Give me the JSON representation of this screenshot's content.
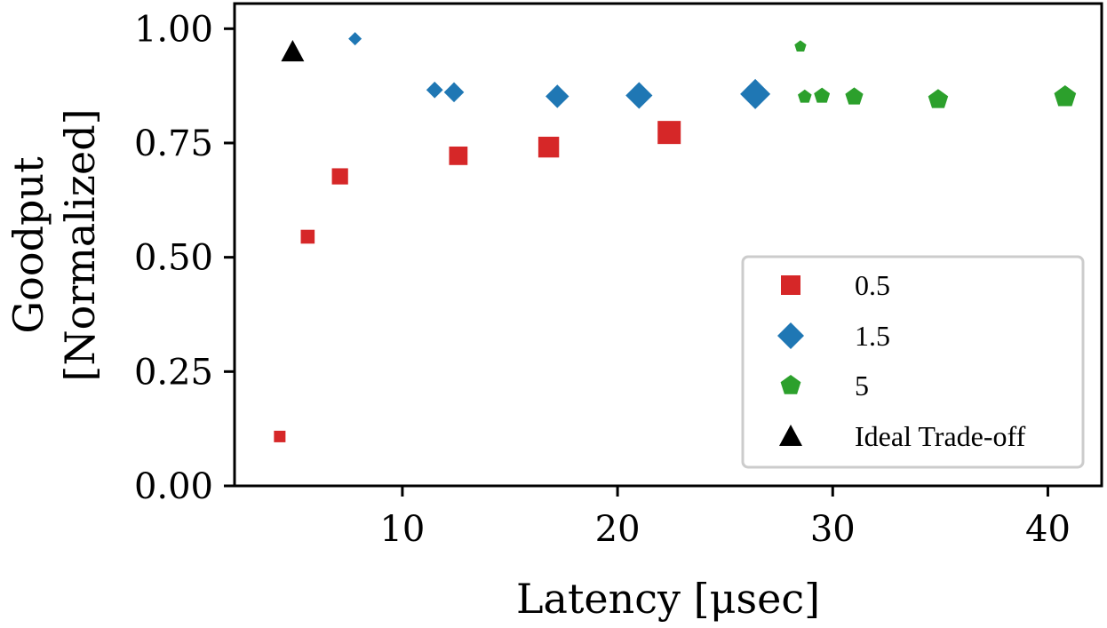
{
  "chart_data": {
    "type": "scatter",
    "title": "",
    "xlabel": "Latency [μsec]",
    "ylabel_lines": [
      "Goodput",
      "[Normalized]"
    ],
    "xlim": [
      2.2,
      42.5
    ],
    "ylim": [
      0.0,
      1.055
    ],
    "xticks": [
      10,
      20,
      30,
      40
    ],
    "xtick_labels": [
      "10",
      "20",
      "30",
      "40"
    ],
    "yticks": [
      0.0,
      0.25,
      0.5,
      0.75,
      1.0
    ],
    "ytick_labels": [
      "0.00",
      "0.25",
      "0.50",
      "0.75",
      "1.00"
    ],
    "grid": false,
    "legend_position": "lower-right",
    "series": [
      {
        "name": "0.5",
        "marker": "square",
        "color": "#d62728",
        "points": [
          {
            "x": 4.3,
            "y": 0.108
          },
          {
            "x": 5.6,
            "y": 0.545
          },
          {
            "x": 7.1,
            "y": 0.677
          },
          {
            "x": 12.6,
            "y": 0.722
          },
          {
            "x": 16.8,
            "y": 0.741
          },
          {
            "x": 22.4,
            "y": 0.773
          }
        ]
      },
      {
        "name": "1.5",
        "marker": "diamond",
        "color": "#1f77b4",
        "points": [
          {
            "x": 7.8,
            "y": 0.978
          },
          {
            "x": 11.5,
            "y": 0.866
          },
          {
            "x": 12.4,
            "y": 0.861
          },
          {
            "x": 17.2,
            "y": 0.852
          },
          {
            "x": 21.0,
            "y": 0.854
          },
          {
            "x": 26.4,
            "y": 0.857
          }
        ]
      },
      {
        "name": "5",
        "marker": "pentagon",
        "color": "#2ca02c",
        "points": [
          {
            "x": 28.5,
            "y": 0.961
          },
          {
            "x": 28.7,
            "y": 0.851
          },
          {
            "x": 29.5,
            "y": 0.853
          },
          {
            "x": 31.0,
            "y": 0.851
          },
          {
            "x": 34.9,
            "y": 0.845
          },
          {
            "x": 40.8,
            "y": 0.851
          }
        ]
      },
      {
        "name": "Ideal Trade-off",
        "marker": "triangle",
        "color": "#000000",
        "points": [
          {
            "x": 4.9,
            "y": 0.95
          }
        ]
      }
    ]
  }
}
